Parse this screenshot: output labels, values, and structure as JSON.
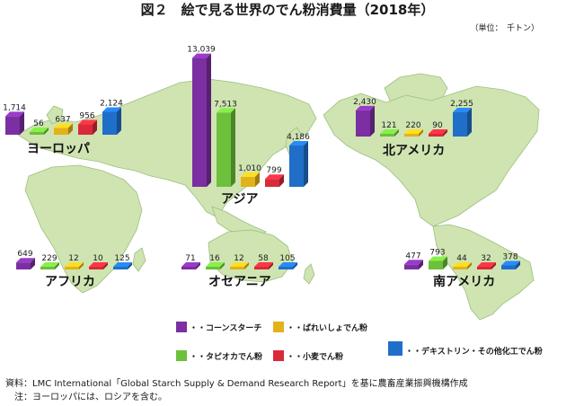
{
  "chart_data": {
    "type": "bar",
    "title": "図２　絵で見る世界のでん粉消費量（2018年）",
    "unit": "（単位：　千トン）",
    "legend_placement": "bottom",
    "series": [
      {
        "name": "コーンスターチ",
        "legend_label": "・・コーンスターチ",
        "color": "#7b2fa2"
      },
      {
        "name": "ばれいしょでん粉",
        "legend_label": "・・ばれいしょでん粉",
        "color": "#e2b21a"
      },
      {
        "name": "タピオカでん粉",
        "legend_label": "・・タピオカでん粉",
        "color": "#6cc03b"
      },
      {
        "name": "小麦でん粉",
        "legend_label": "・・小麦でん粉",
        "color": "#d82a3a"
      },
      {
        "name": "デキストリン・その他化工でん粉",
        "legend_label": "・・デキストリン・その他化工でん粉",
        "color": "#1f6fc9"
      }
    ],
    "regions": [
      {
        "name": "ヨーロッパ",
        "values": [
          1714,
          637,
          56,
          956,
          2124
        ],
        "labels": [
          "1,714",
          "637",
          "56",
          "956",
          "2,124"
        ]
      },
      {
        "name": "アジア",
        "values": [
          13039,
          1010,
          7513,
          799,
          4186
        ],
        "labels": [
          "13,039",
          "1,010",
          "7,513",
          "799",
          "4,186"
        ]
      },
      {
        "name": "北アメリカ",
        "values": [
          2430,
          220,
          121,
          90,
          2255
        ],
        "labels": [
          "2,430",
          "220",
          "121",
          "90",
          "2,255"
        ]
      },
      {
        "name": "アフリカ",
        "values": [
          649,
          12,
          229,
          10,
          125
        ],
        "labels": [
          "649",
          "12",
          "229",
          "10",
          "125"
        ]
      },
      {
        "name": "オセアニア",
        "values": [
          71,
          12,
          16,
          58,
          105
        ],
        "labels": [
          "71",
          "12",
          "16",
          "58",
          "105"
        ]
      },
      {
        "name": "南アメリカ",
        "values": [
          477,
          44,
          793,
          32,
          378
        ],
        "labels": [
          "477",
          "44",
          "793",
          "32",
          "378"
        ]
      }
    ]
  },
  "footnotes": [
    "資料：LMC International「Global Starch Supply & Demand Research Report」を基に農畜産業振興機構作成",
    "　注：ヨーロッパには、ロシアを含む。"
  ]
}
